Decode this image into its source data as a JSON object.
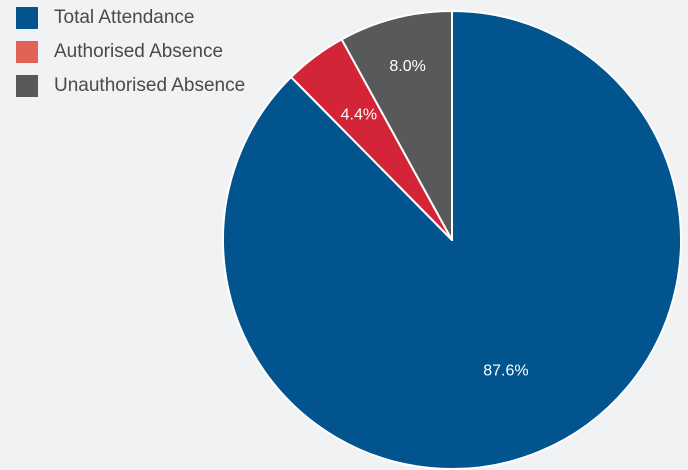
{
  "chart_data": {
    "type": "pie",
    "title": "",
    "legend_position": "top-left",
    "slices": [
      {
        "name": "Total Attendance",
        "value": 87.6,
        "label": "87.6%",
        "color": "#02548e",
        "legend_color": "#02548e"
      },
      {
        "name": "Authorised Absence",
        "value": 4.4,
        "label": "4.4%",
        "color": "#d42437",
        "legend_color": "#e06155"
      },
      {
        "name": "Unauthorised Absence",
        "value": 8.0,
        "label": "8.0%",
        "color": "#58595b",
        "legend_color": "#58595b"
      }
    ]
  }
}
